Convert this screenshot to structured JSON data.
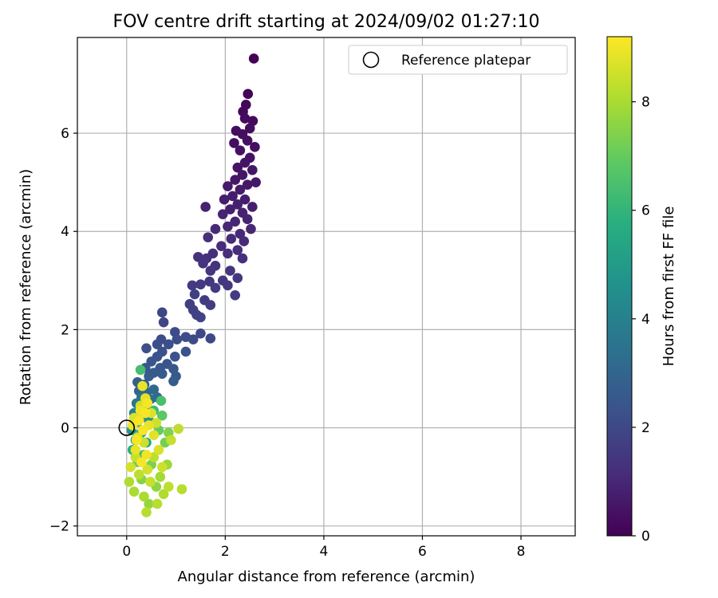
{
  "chart_data": {
    "type": "scatter",
    "title": "FOV centre drift starting at 2024/09/02 01:27:10",
    "xlabel": "Angular distance from reference (arcmin)",
    "ylabel": "Rotation from reference (arcmin)",
    "xlim": [
      -1.0,
      9.1
    ],
    "ylim": [
      -2.2,
      7.95
    ],
    "xticks": [
      0,
      2,
      4,
      6,
      8
    ],
    "yticks": [
      -2,
      0,
      2,
      4,
      6
    ],
    "grid": true,
    "legend": {
      "placement": "top-right",
      "entries": [
        "Reference platepar"
      ]
    },
    "reference_point": {
      "name": "Reference platepar",
      "x": 0,
      "y": 0
    },
    "colorbar": {
      "label": "Hours from first FF file",
      "colormap": "viridis",
      "range": [
        0,
        9.2
      ],
      "ticks": [
        0,
        2,
        4,
        6,
        8
      ]
    },
    "series": [
      {
        "points": [
          [
            2.58,
            7.52,
            0.0
          ],
          [
            2.46,
            6.8,
            0.1
          ],
          [
            2.42,
            6.58,
            0.15
          ],
          [
            2.36,
            6.44,
            0.2
          ],
          [
            2.56,
            6.25,
            0.2
          ],
          [
            2.4,
            6.3,
            0.25
          ],
          [
            2.22,
            6.05,
            0.3
          ],
          [
            2.5,
            6.1,
            0.3
          ],
          [
            2.35,
            5.98,
            0.35
          ],
          [
            2.18,
            5.8,
            0.35
          ],
          [
            2.45,
            5.85,
            0.4
          ],
          [
            2.6,
            5.72,
            0.4
          ],
          [
            2.3,
            5.65,
            0.45
          ],
          [
            2.5,
            5.5,
            0.45
          ],
          [
            2.4,
            5.4,
            0.5
          ],
          [
            2.25,
            5.3,
            0.5
          ],
          [
            2.55,
            5.25,
            0.55
          ],
          [
            2.35,
            5.15,
            0.55
          ],
          [
            2.2,
            5.05,
            0.6
          ],
          [
            2.62,
            5.0,
            0.6
          ],
          [
            2.45,
            4.95,
            0.6
          ],
          [
            2.05,
            4.92,
            0.65
          ],
          [
            2.3,
            4.85,
            0.65
          ],
          [
            2.15,
            4.72,
            0.7
          ],
          [
            2.4,
            4.65,
            0.7
          ],
          [
            2.55,
            4.5,
            0.75
          ],
          [
            1.98,
            4.65,
            0.75
          ],
          [
            2.25,
            4.55,
            0.8
          ],
          [
            2.1,
            4.45,
            0.8
          ],
          [
            1.6,
            4.5,
            0.85
          ],
          [
            2.35,
            4.38,
            0.85
          ],
          [
            1.95,
            4.35,
            0.9
          ],
          [
            2.45,
            4.25,
            0.9
          ],
          [
            2.2,
            4.2,
            0.95
          ],
          [
            2.05,
            4.1,
            1.0
          ],
          [
            2.52,
            4.05,
            1.0
          ],
          [
            2.3,
            3.95,
            1.05
          ],
          [
            1.8,
            4.05,
            1.05
          ],
          [
            2.12,
            3.85,
            1.1
          ],
          [
            2.38,
            3.8,
            1.1
          ],
          [
            1.92,
            3.7,
            1.15
          ],
          [
            2.25,
            3.62,
            1.15
          ],
          [
            2.05,
            3.55,
            1.2
          ],
          [
            2.35,
            3.45,
            1.2
          ],
          [
            1.65,
            3.88,
            1.25
          ],
          [
            1.75,
            3.55,
            1.25
          ],
          [
            1.45,
            3.48,
            1.3
          ],
          [
            1.62,
            3.45,
            1.3
          ],
          [
            1.8,
            3.3,
            1.35
          ],
          [
            1.55,
            3.35,
            1.35
          ],
          [
            2.1,
            3.2,
            1.4
          ],
          [
            1.7,
            3.2,
            1.4
          ],
          [
            2.25,
            3.05,
            1.45
          ],
          [
            1.95,
            3.0,
            1.45
          ],
          [
            2.05,
            2.9,
            1.5
          ],
          [
            1.68,
            2.98,
            1.5
          ],
          [
            1.5,
            2.92,
            1.55
          ],
          [
            1.33,
            2.9,
            1.55
          ],
          [
            1.8,
            2.85,
            1.6
          ],
          [
            2.2,
            2.7,
            1.6
          ],
          [
            1.58,
            2.6,
            1.65
          ],
          [
            1.7,
            2.5,
            1.65
          ],
          [
            1.38,
            2.72,
            1.7
          ],
          [
            1.28,
            2.52,
            1.7
          ],
          [
            1.35,
            2.4,
            1.75
          ],
          [
            1.42,
            2.3,
            1.8
          ],
          [
            1.5,
            2.25,
            1.85
          ],
          [
            0.72,
            2.35,
            1.9
          ],
          [
            0.75,
            2.15,
            1.9
          ],
          [
            1.7,
            1.82,
            2.0
          ],
          [
            1.5,
            1.92,
            2.0
          ],
          [
            1.35,
            1.8,
            2.05
          ],
          [
            1.2,
            1.85,
            2.1
          ],
          [
            0.98,
            1.95,
            2.1
          ],
          [
            1.02,
            1.8,
            2.15
          ],
          [
            0.7,
            1.8,
            2.15
          ],
          [
            0.85,
            1.7,
            2.2
          ],
          [
            0.62,
            1.7,
            2.2
          ],
          [
            0.4,
            1.62,
            2.25
          ],
          [
            0.72,
            1.55,
            2.25
          ],
          [
            1.2,
            1.55,
            2.3
          ],
          [
            0.98,
            1.45,
            2.3
          ],
          [
            0.62,
            1.45,
            2.35
          ],
          [
            0.5,
            1.35,
            2.4
          ],
          [
            0.82,
            1.3,
            2.4
          ],
          [
            0.38,
            1.22,
            2.45
          ],
          [
            0.68,
            1.22,
            2.5
          ],
          [
            0.95,
            1.2,
            2.5
          ],
          [
            0.55,
            1.12,
            2.55
          ],
          [
            0.72,
            1.1,
            2.6
          ],
          [
            1.0,
            1.05,
            2.6
          ],
          [
            0.95,
            0.95,
            2.65
          ],
          [
            0.45,
            1.05,
            2.7
          ],
          [
            0.22,
            0.93,
            2.75
          ],
          [
            0.36,
            0.88,
            2.8
          ],
          [
            0.25,
            0.75,
            2.9
          ],
          [
            0.4,
            0.72,
            3.0
          ],
          [
            0.55,
            0.78,
            3.1
          ],
          [
            0.62,
            0.62,
            3.2
          ],
          [
            0.48,
            0.58,
            3.3
          ],
          [
            0.3,
            0.62,
            3.4
          ],
          [
            0.2,
            0.5,
            3.6
          ],
          [
            0.4,
            0.45,
            3.8
          ],
          [
            0.15,
            0.3,
            4.0
          ],
          [
            0.35,
            0.25,
            4.2
          ],
          [
            0.22,
            0.12,
            4.4
          ],
          [
            0.45,
            0.15,
            4.6
          ],
          [
            0.1,
            -0.05,
            4.8
          ],
          [
            0.3,
            -0.1,
            5.0
          ],
          [
            0.18,
            -0.25,
            5.2
          ],
          [
            0.4,
            -0.3,
            5.5
          ],
          [
            0.28,
            1.18,
            6.4
          ],
          [
            0.12,
            -0.45,
            5.8
          ],
          [
            0.35,
            -0.55,
            6.0
          ],
          [
            0.55,
            0.35,
            6.2
          ],
          [
            0.7,
            0.55,
            6.5
          ],
          [
            0.72,
            0.25,
            6.8
          ],
          [
            0.65,
            -0.05,
            7.0
          ],
          [
            0.22,
            -0.7,
            7.1
          ],
          [
            0.78,
            -0.3,
            7.2
          ],
          [
            0.5,
            -0.75,
            7.3
          ],
          [
            0.85,
            -0.1,
            7.4
          ],
          [
            0.3,
            -1.05,
            7.5
          ],
          [
            0.6,
            -1.2,
            7.6
          ],
          [
            0.45,
            -1.55,
            7.7
          ],
          [
            0.82,
            -0.75,
            7.8
          ],
          [
            0.68,
            -1.0,
            7.9
          ],
          [
            0.35,
            -1.4,
            8.0
          ],
          [
            0.15,
            -1.3,
            8.0
          ],
          [
            0.05,
            -1.1,
            8.1
          ],
          [
            0.75,
            -1.35,
            8.1
          ],
          [
            0.62,
            -1.55,
            8.2
          ],
          [
            0.4,
            -1.72,
            8.2
          ],
          [
            1.12,
            -1.25,
            8.2
          ],
          [
            0.85,
            -1.2,
            8.3
          ],
          [
            0.25,
            -0.95,
            8.3
          ],
          [
            0.55,
            -0.6,
            8.3
          ],
          [
            1.05,
            -0.02,
            8.3
          ],
          [
            0.9,
            -0.25,
            8.4
          ],
          [
            0.18,
            -0.6,
            8.4
          ],
          [
            0.48,
            -1.1,
            8.4
          ],
          [
            0.72,
            -0.8,
            8.5
          ],
          [
            0.35,
            -0.3,
            8.5
          ],
          [
            0.6,
            0.1,
            8.5
          ],
          [
            0.28,
            0.45,
            8.6
          ],
          [
            0.08,
            -0.8,
            8.6
          ],
          [
            0.42,
            -0.85,
            8.6
          ],
          [
            0.65,
            -0.45,
            8.7
          ],
          [
            0.15,
            0.2,
            8.7
          ],
          [
            0.5,
            0.3,
            8.7
          ],
          [
            0.38,
            0.6,
            8.8
          ],
          [
            0.22,
            -0.2,
            8.8
          ],
          [
            0.55,
            -0.15,
            8.8
          ],
          [
            0.32,
            0.85,
            8.9
          ],
          [
            0.45,
            0.05,
            8.9
          ],
          [
            0.18,
            -0.45,
            8.9
          ],
          [
            0.28,
            0.35,
            9.0
          ],
          [
            0.4,
            -0.55,
            9.0
          ],
          [
            0.12,
            0.05,
            9.0
          ],
          [
            0.33,
            -0.05,
            9.1
          ],
          [
            0.25,
            0.15,
            9.1
          ],
          [
            0.38,
            0.3,
            9.1
          ],
          [
            0.2,
            -0.25,
            9.1
          ],
          [
            0.3,
            -0.7,
            9.1
          ],
          [
            0.42,
            0.5,
            9.1
          ]
        ]
      }
    ]
  }
}
